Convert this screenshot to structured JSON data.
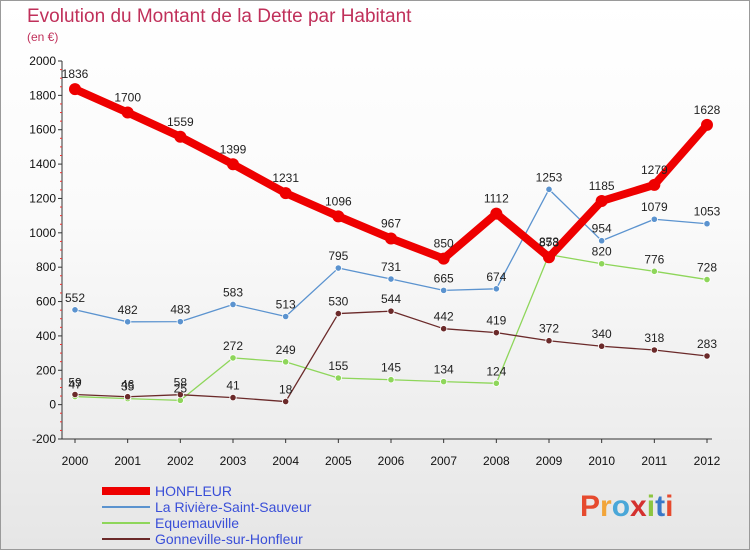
{
  "chart_data": {
    "type": "line",
    "title": "Evolution du Montant de la Dette par Habitant",
    "subtitle": "(en €)",
    "xlabel": "",
    "ylabel": "",
    "ylim": [
      -200,
      2000
    ],
    "y_ticks": [
      -200,
      0,
      200,
      400,
      600,
      800,
      1000,
      1200,
      1400,
      1600,
      1800,
      2000
    ],
    "x": [
      "2000",
      "2001",
      "2002",
      "2003",
      "2004",
      "2005",
      "2006",
      "2007",
      "2008",
      "2009",
      "2010",
      "2011",
      "2012"
    ],
    "grid": false,
    "legend_position": "bottom-left",
    "series": [
      {
        "name": "HONFLEUR",
        "color": "#ee0000",
        "values": [
          1836,
          1700,
          1559,
          1399,
          1231,
          1096,
          967,
          850,
          1112,
          858,
          1185,
          1279,
          1628
        ],
        "labels": [
          "1836",
          "1700",
          "1559",
          "1399",
          "1231",
          "1096",
          "967",
          "850",
          "1112",
          "858",
          "1185",
          "1279",
          "1628"
        ]
      },
      {
        "name": "La Rivière-Saint-Sauveur",
        "color": "#5b93cf",
        "values": [
          552,
          482,
          483,
          583,
          513,
          795,
          731,
          665,
          674,
          1253,
          954,
          1079,
          1053
        ],
        "labels": [
          "552",
          "482",
          "483",
          "583",
          "513",
          "795",
          "731",
          "665",
          "674",
          "1253",
          "954",
          "1079",
          "1053"
        ]
      },
      {
        "name": "Equemauville",
        "color": "#8ed65a",
        "values": [
          47,
          35,
          25,
          272,
          249,
          155,
          145,
          134,
          124,
          873,
          820,
          776,
          728
        ],
        "labels": [
          "47",
          "35",
          "25",
          "272",
          "249",
          "155",
          "145",
          "134",
          "124",
          "873",
          "820",
          "776",
          "728"
        ]
      },
      {
        "name": "Gonneville-sur-Honfleur",
        "color": "#6b2a2a",
        "values": [
          59,
          46,
          58,
          41,
          18,
          530,
          544,
          442,
          419,
          372,
          340,
          318,
          283
        ],
        "labels": [
          "59",
          "46",
          "58",
          "41",
          "18",
          "530",
          "544",
          "442",
          "419",
          "372",
          "340",
          "318",
          "283"
        ]
      }
    ]
  },
  "logo": {
    "text": "Proxiti",
    "letter_colors": [
      "#e64a2e",
      "#f2a53a",
      "#4aa7d8",
      "#d4312f",
      "#8cc540",
      "#3a78c8",
      "#e64a2e"
    ]
  }
}
